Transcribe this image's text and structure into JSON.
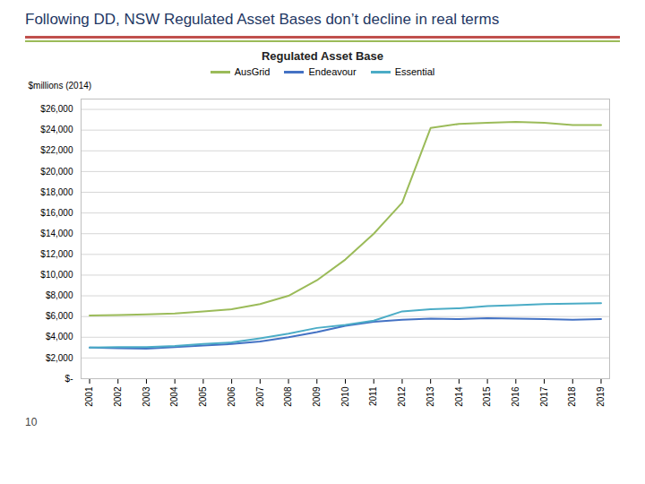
{
  "chart_data": {
    "type": "line",
    "title": "Following DD, NSW Regulated Asset Bases don’t decline in real terms",
    "subtitle": "Regulated Asset Base",
    "y_label": "$millions (2014)",
    "x": [
      2001,
      2002,
      2003,
      2004,
      2005,
      2006,
      2007,
      2008,
      2009,
      2010,
      2011,
      2012,
      2013,
      2014,
      2015,
      2016,
      2017,
      2018,
      2019
    ],
    "series": [
      {
        "name": "AusGrid",
        "color": "#9BBB59",
        "values": [
          6100,
          6150,
          6200,
          6300,
          6500,
          6700,
          7200,
          8000,
          9500,
          11500,
          14000,
          17000,
          24200,
          24600,
          24700,
          24800,
          24700,
          24500,
          24500
        ]
      },
      {
        "name": "Endeavour",
        "color": "#4472C4",
        "values": [
          3000,
          2950,
          2900,
          3050,
          3200,
          3350,
          3600,
          4000,
          4500,
          5100,
          5500,
          5700,
          5800,
          5750,
          5850,
          5800,
          5750,
          5700,
          5750
        ]
      },
      {
        "name": "Essential",
        "color": "#4BACC6",
        "values": [
          3000,
          3050,
          3050,
          3150,
          3350,
          3500,
          3900,
          4350,
          4900,
          5200,
          5600,
          6500,
          6700,
          6800,
          7000,
          7100,
          7200,
          7250,
          7300
        ]
      }
    ],
    "xlim": [
      2000.7,
      2019.3
    ],
    "xticks": [
      2001,
      2002,
      2003,
      2004,
      2005,
      2006,
      2007,
      2008,
      2009,
      2010,
      2011,
      2012,
      2013,
      2014,
      2015,
      2016,
      2017,
      2018,
      2019
    ],
    "ylim": [
      0,
      27000
    ],
    "yticks": [
      {
        "value": 0,
        "label": "$-"
      },
      {
        "value": 2000,
        "label": "$2,000"
      },
      {
        "value": 4000,
        "label": "$4,000"
      },
      {
        "value": 6000,
        "label": "$6,000"
      },
      {
        "value": 8000,
        "label": "$8,000"
      },
      {
        "value": 10000,
        "label": "$10,000"
      },
      {
        "value": 12000,
        "label": "$12,000"
      },
      {
        "value": 14000,
        "label": "$14,000"
      },
      {
        "value": 16000,
        "label": "$16,000"
      },
      {
        "value": 18000,
        "label": "$18,000"
      },
      {
        "value": 20000,
        "label": "$20,000"
      },
      {
        "value": 22000,
        "label": "$22,000"
      },
      {
        "value": 24000,
        "label": "$24,000"
      },
      {
        "value": 26000,
        "label": "$26,000"
      }
    ],
    "grid": true,
    "legend": "top",
    "annotations": [
      "10"
    ]
  }
}
